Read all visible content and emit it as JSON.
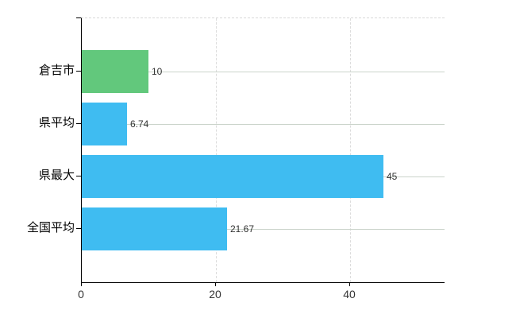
{
  "chart_data": {
    "type": "bar",
    "orientation": "horizontal",
    "title": "",
    "xlabel": "",
    "ylabel": "",
    "categories": [
      "倉吉市",
      "県平均",
      "県最大",
      "全国平均"
    ],
    "values": [
      10,
      6.74,
      45,
      21.67
    ],
    "value_labels": [
      "10",
      "6.74",
      "45",
      "21.67"
    ],
    "bar_colors": [
      "#62c87c",
      "#3fbcf1",
      "#3fbcf1",
      "#3fbcf1"
    ],
    "x_tick_values": [
      0,
      20,
      40
    ],
    "x_tick_labels": [
      "0",
      "20",
      "40"
    ],
    "xlim": [
      0,
      54.1
    ],
    "grid": true,
    "legend": "none",
    "colors": {
      "green_bar": "#62c87c",
      "blue_bar": "#3fbcf1",
      "horizontal_gridline": "#cbd4cb",
      "vertical_gridline": "#dcdcdc",
      "top_border": "#d9d9d9",
      "axis": "#000000",
      "category_text": "#000000",
      "value_text": "#333333",
      "background": "#ffffff"
    }
  }
}
